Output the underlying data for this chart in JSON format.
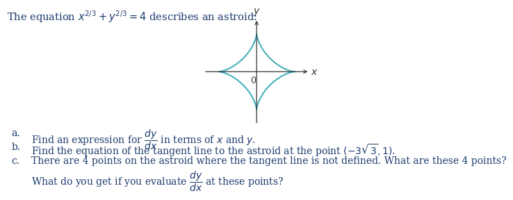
{
  "title_text": "The equation $x^{2/3} + y^{2/3} = 4$ describes an astroid:",
  "title_fontsize": 10.5,
  "text_color": "#1c3b6e",
  "astroid_color": "#3aacb8",
  "astroid_linewidth": 1.4,
  "astroid_a": 1.0,
  "axis_color": "#333333",
  "axis_linewidth": 0.9,
  "label_x": "$x$",
  "label_y": "$y$",
  "label_fontsize": 10,
  "origin_label": "0",
  "items": [
    {
      "letter": "a.",
      "text": "Find an expression for $\\dfrac{dy}{dx}$ in terms of $x$ and $y$."
    },
    {
      "letter": "b.",
      "text": "Find the equation of the tangent line to the astroid at the point $(-3\\sqrt{3}, 1)$."
    },
    {
      "letter": "c.",
      "text": "There are 4 points on the astroid where the tangent line is not defined. What are these 4 points?"
    },
    {
      "letter": "",
      "text": "What do you get if you evaluate $\\dfrac{dy}{dx}$ at these points?"
    }
  ],
  "item_fontsize": 10.0,
  "background_color": "#ffffff",
  "fig_width": 6.59,
  "fig_height": 2.59
}
